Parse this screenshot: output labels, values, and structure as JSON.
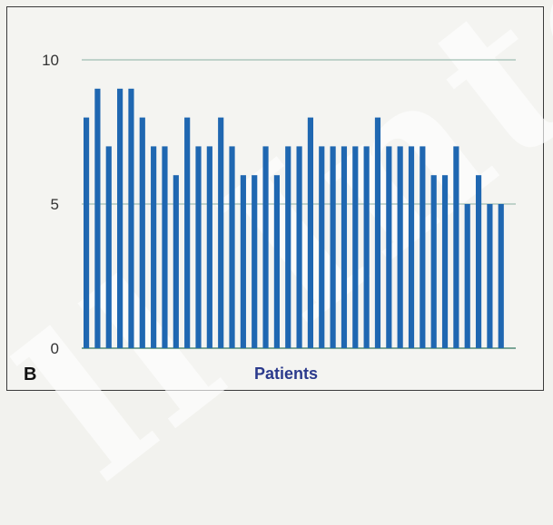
{
  "panel_label": "B",
  "watermark_text": "ll Inter",
  "colors": {
    "bar": "#1f67b1",
    "grid": "#9fbeb2",
    "axis": "#7aa596",
    "xlabel": "#2b3a8c"
  },
  "chart_data": {
    "type": "bar",
    "xlabel": "Patients",
    "ylabel": "",
    "ylim": [
      0,
      10
    ],
    "yticks": [
      0,
      5,
      10
    ],
    "grid": true,
    "values": [
      8,
      9,
      7,
      9,
      9,
      8,
      7,
      7,
      6,
      8,
      7,
      7,
      8,
      7,
      6,
      6,
      7,
      6,
      7,
      7,
      8,
      7,
      7,
      7,
      7,
      7,
      8,
      7,
      7,
      7,
      7,
      6,
      6,
      7,
      5,
      6,
      5,
      5
    ]
  }
}
